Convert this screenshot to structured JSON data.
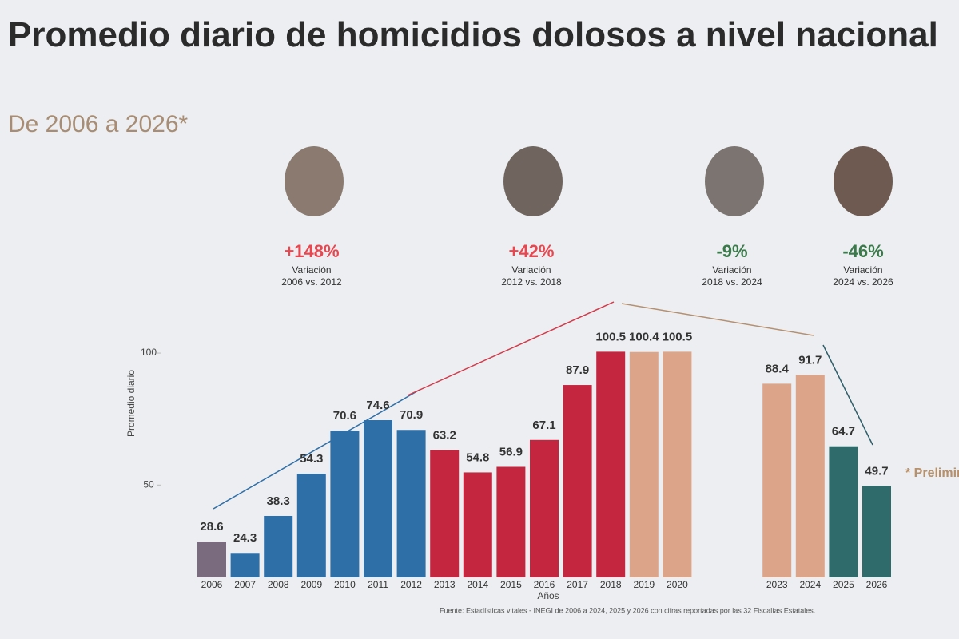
{
  "chart_data": {
    "type": "bar",
    "title": "Promedio diario de homicidios dolosos a nivel nacional",
    "subtitle": "De 2006 a 2026*",
    "y_label": "Promedio diario",
    "x_label": "Años",
    "note": "* Preliminar",
    "source": "Fuente: Estadísticas vitales - INEGI de 2006 a 2024, 2025 y 2026 con cifras reportadas por las 32 Fiscalías Estatales.",
    "categories": [
      "2006",
      "2007",
      "2008",
      "2009",
      "2010",
      "2011",
      "2012",
      "2013",
      "2014",
      "2015",
      "2016",
      "2017",
      "2018",
      "2019",
      "2020",
      null,
      null,
      "2023",
      "2024",
      "2025",
      "2026"
    ],
    "values": [
      28.6,
      24.3,
      38.3,
      54.3,
      70.6,
      74.6,
      70.9,
      63.2,
      54.8,
      56.9,
      67.1,
      87.9,
      100.5,
      100.4,
      100.5,
      null,
      null,
      88.4,
      91.7,
      64.7,
      49.7
    ],
    "colors": [
      "#7b6b7e",
      "#2f6fa8",
      "#2f6fa8",
      "#2f6fa8",
      "#2f6fa8",
      "#2f6fa8",
      "#2f6fa8",
      "#c4263f",
      "#c4263f",
      "#c4263f",
      "#c4263f",
      "#c4263f",
      "#c4263f",
      "#dca58a",
      "#dca58a",
      "#dca58a",
      "#dca58a",
      "#dca58a",
      "#dca58a",
      "#2f6b6b",
      "#2f6b6b"
    ],
    "ylim": [
      15,
      110
    ],
    "yticks": [
      50,
      100
    ],
    "annotations": [
      {
        "change": "+148%",
        "label": "Variación",
        "period": "2006 vs. 2012",
        "color": "#e8474f"
      },
      {
        "change": "+42%",
        "label": "Variación",
        "period": "2012 vs. 2018",
        "color": "#e8474f"
      },
      {
        "change": "-9%",
        "label": "Variación",
        "period": "2018 vs. 2024",
        "color": "#3a7a4a"
      },
      {
        "change": "-46%",
        "label": "Variación",
        "period": "2024 vs. 2026",
        "color": "#3a7a4a"
      }
    ]
  }
}
